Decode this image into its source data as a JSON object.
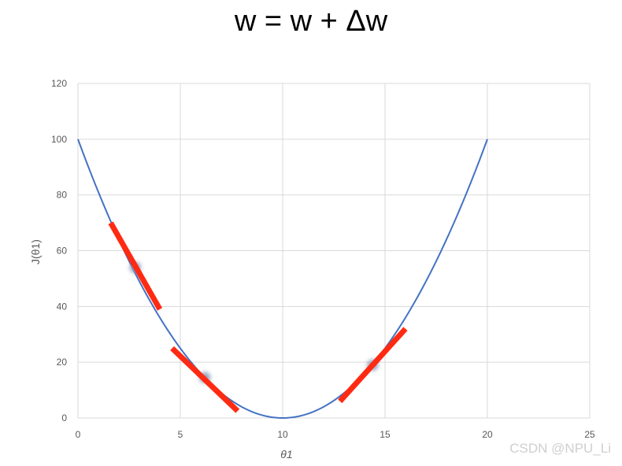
{
  "title": "w = w + Δw",
  "watermark": "CSDN @NPU_Li",
  "colors": {
    "curve": "#4472C4",
    "tangent": "#FF2A12",
    "grid": "#D9D9D9",
    "tick_text": "#595959",
    "point": "#8797B8"
  },
  "chart_data": {
    "type": "line",
    "title": "",
    "xlabel": "θ1",
    "ylabel": "J(θ1)",
    "xlim": [
      0,
      25
    ],
    "ylim": [
      0,
      120
    ],
    "x_ticks": [
      0,
      5,
      10,
      15,
      20,
      25
    ],
    "y_ticks": [
      0,
      20,
      40,
      60,
      80,
      100,
      120
    ],
    "grid": true,
    "series": [
      {
        "function": "(x - 10)^2",
        "x": [
          0,
          1,
          2,
          3,
          4,
          5,
          6,
          7,
          8,
          9,
          10,
          11,
          12,
          13,
          14,
          15,
          16,
          17,
          18,
          19,
          20
        ],
        "y": [
          100,
          81,
          64,
          49,
          36,
          25,
          16,
          9,
          4,
          1,
          0,
          1,
          4,
          9,
          16,
          25,
          36,
          49,
          64,
          81,
          100
        ]
      }
    ],
    "points": [
      {
        "x": 2.8,
        "y": 54
      },
      {
        "x": 6.2,
        "y": 14.5
      },
      {
        "x": 14.4,
        "y": 19
      }
    ],
    "tangent_lines": [
      {
        "x1": 1.6,
        "y1": 70,
        "x2": 4.0,
        "y2": 39
      },
      {
        "x1": 4.6,
        "y1": 25,
        "x2": 7.8,
        "y2": 2.5
      },
      {
        "x1": 12.8,
        "y1": 6,
        "x2": 16.0,
        "y2": 32
      }
    ]
  }
}
